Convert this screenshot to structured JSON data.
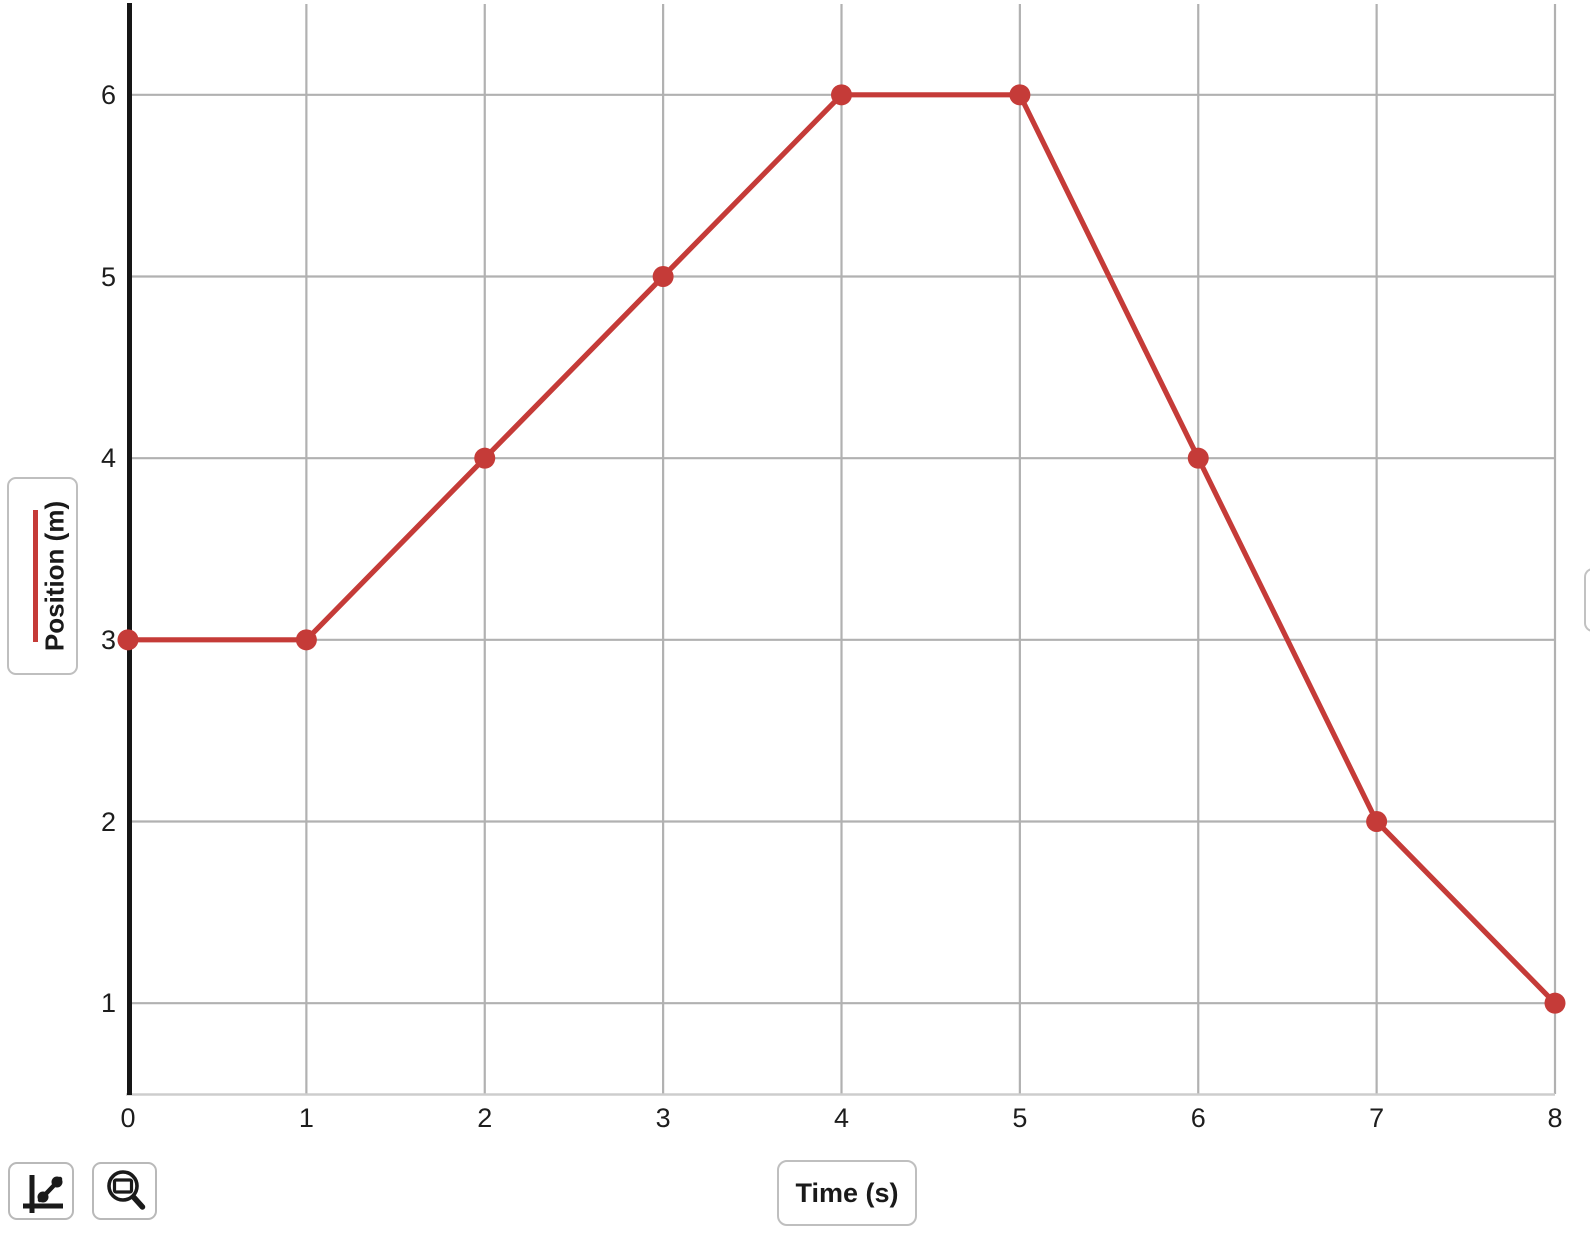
{
  "chart_data": {
    "type": "line",
    "title": "",
    "xlabel": "Time (s)",
    "ylabel": "Position (m)",
    "series": [
      {
        "name": "Position (m)",
        "x": [
          0,
          1,
          2,
          3,
          4,
          5,
          6,
          7,
          8
        ],
        "y": [
          3,
          3,
          4,
          5,
          6,
          6,
          4,
          2,
          1
        ]
      }
    ],
    "xlim": [
      0,
      8
    ],
    "ylim": [
      0.5,
      6.5
    ],
    "x_ticks": [
      0,
      1,
      2,
      3,
      4,
      5,
      6,
      7,
      8
    ],
    "y_ticks": [
      1,
      2,
      3,
      4,
      5,
      6
    ],
    "grid": true,
    "legend_position": "left-middle",
    "marker": "circle",
    "colors": {
      "series": "#c53b38",
      "grid": "#b1b1b1",
      "y_axis": "#161616",
      "x_baseline": "#cdcdcd",
      "tick_text": "#1d1d1d",
      "box_border": "#bfbfbf"
    }
  },
  "toolbar": {
    "buttons": [
      {
        "id": "graph-type",
        "icon": "line-scatter-chart-icon"
      },
      {
        "id": "zoom-fit",
        "icon": "magnifier-fit-icon"
      }
    ]
  }
}
